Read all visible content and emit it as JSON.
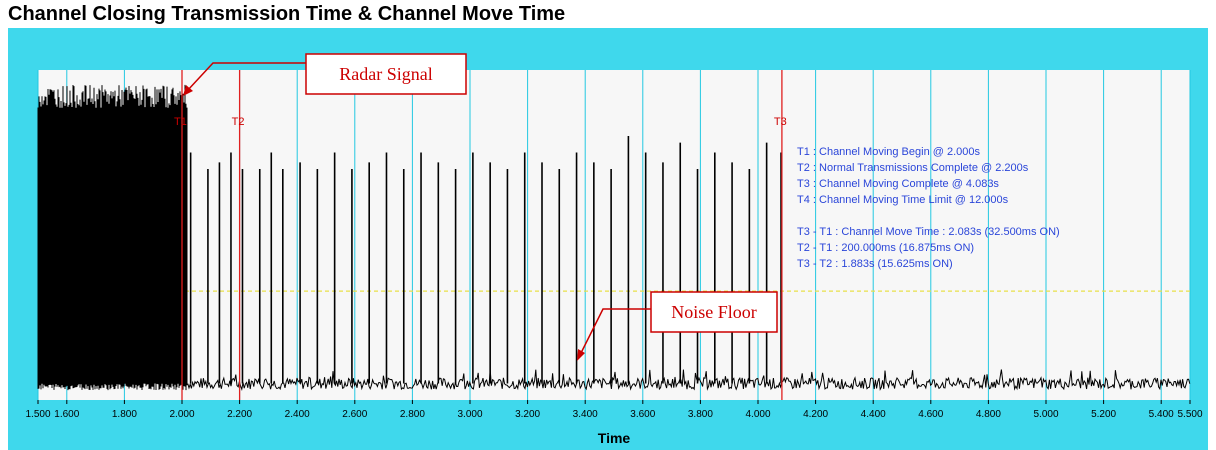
{
  "title": "Channel Closing Transmission Time & Channel Move Time",
  "colors": {
    "frame": "#3fd8ec",
    "plot_bg": "#f7f7f7",
    "grid": "#22c8e2",
    "marker": "#e02020",
    "signal": "#000000",
    "threshold": "#e8e04a",
    "info_text": "#2b46d9",
    "annotation": "#cc0000"
  },
  "chart_data": {
    "type": "line",
    "xlabel": "Time",
    "xlim": [
      1.5,
      5.5
    ],
    "x_ticks": [
      "1.500",
      "1.600",
      "1.800",
      "2.000",
      "2.200",
      "2.400",
      "2.600",
      "2.800",
      "3.000",
      "3.200",
      "3.400",
      "3.600",
      "3.800",
      "4.000",
      "4.200",
      "4.400",
      "4.600",
      "4.800",
      "5.000",
      "5.200",
      "5.400",
      "5.500"
    ],
    "ylim": [
      0,
      1
    ],
    "threshold_level": 0.33,
    "noise_level": 0.05,
    "radar_burst": {
      "start": 1.5,
      "end": 2.02,
      "level": 0.92
    },
    "transmission_pulses": {
      "times": [
        2.03,
        2.09,
        2.13,
        2.17,
        2.21,
        2.27,
        2.31,
        2.35,
        2.41,
        2.47,
        2.53,
        2.59,
        2.65,
        2.71,
        2.77,
        2.83,
        2.89,
        2.95,
        3.01,
        3.07,
        3.13,
        3.19,
        3.25,
        3.31,
        3.37,
        3.43,
        3.49,
        3.55,
        3.61,
        3.67,
        3.73,
        3.79,
        3.85,
        3.91,
        3.97,
        4.03,
        4.08
      ],
      "heights": [
        0.75,
        0.7,
        0.72,
        0.75,
        0.7,
        0.7,
        0.75,
        0.7,
        0.72,
        0.7,
        0.75,
        0.7,
        0.72,
        0.75,
        0.7,
        0.75,
        0.72,
        0.7,
        0.75,
        0.72,
        0.7,
        0.75,
        0.72,
        0.7,
        0.75,
        0.72,
        0.7,
        0.8,
        0.75,
        0.72,
        0.78,
        0.7,
        0.75,
        0.72,
        0.7,
        0.78,
        0.75
      ]
    },
    "markers": [
      {
        "label": "T1",
        "x": 2.0
      },
      {
        "label": "T2",
        "x": 2.2
      },
      {
        "label": "T3",
        "x": 4.083
      }
    ],
    "info_lines": [
      "T1 : Channel Moving Begin @ 2.000s",
      "T2 : Normal Transmissions Complete @ 2.200s",
      "T3 : Channel Moving Complete @ 4.083s",
      "T4 : Channel Moving Time Limit @ 12.000s",
      "",
      "T3 - T1 : Channel Move Time : 2.083s (32.500ms ON)",
      "T2 - T1 : 200.000ms (16.875ms ON)",
      "T3 - T2 : 1.883s (15.625ms ON)"
    ],
    "annotations": [
      {
        "text": "Radar Signal"
      },
      {
        "text": "Noise Floor"
      }
    ]
  }
}
